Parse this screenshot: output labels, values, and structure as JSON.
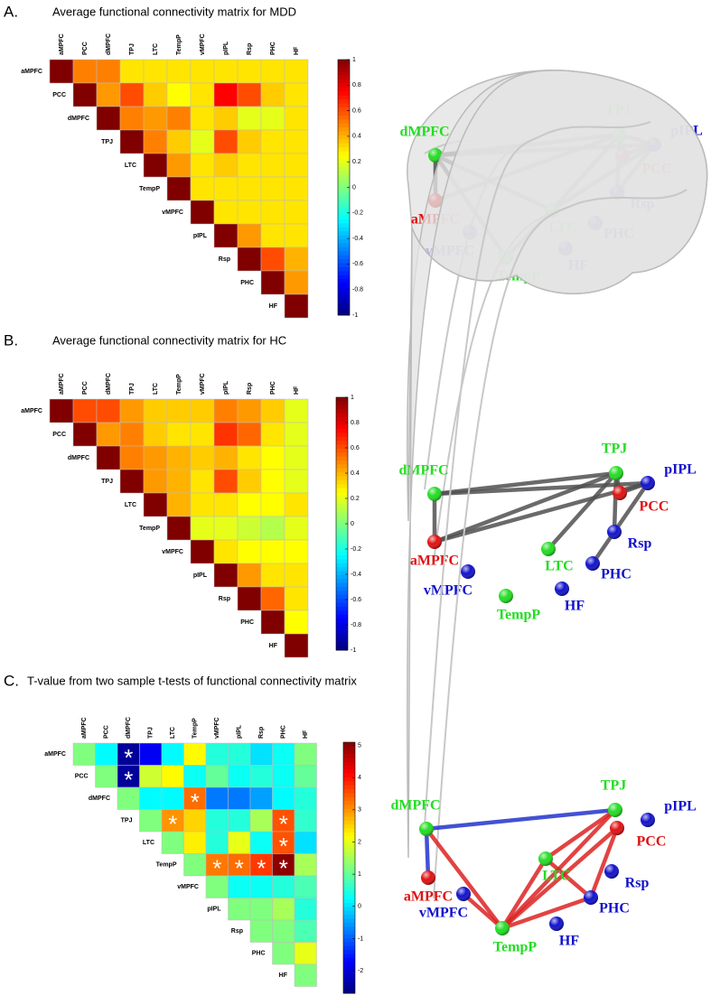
{
  "chart_data": [
    {
      "type": "heatmap",
      "label": "A.",
      "title": "Average functional connectivity matrix for MDD",
      "x": [
        "aMPFC",
        "PCC",
        "dMPFC",
        "TPJ",
        "LTC",
        "TempP",
        "vMPFC",
        "pIPL",
        "Rsp",
        "PHC",
        "HF"
      ],
      "y": [
        "aMPFC",
        "PCC",
        "dMPFC",
        "TPJ",
        "LTC",
        "TempP",
        "vMPFC",
        "pIPL",
        "Rsp",
        "PHC",
        "HF"
      ],
      "values": [
        [
          1,
          0.5,
          0.5,
          0.3,
          0.3,
          0.3,
          0.3,
          0.3,
          0.3,
          0.3,
          0.3
        ],
        [
          null,
          1,
          0.45,
          0.6,
          0.35,
          0.25,
          0.3,
          0.75,
          0.6,
          0.35,
          0.3
        ],
        [
          null,
          null,
          1,
          0.5,
          0.45,
          0.5,
          0.3,
          0.35,
          0.2,
          0.2,
          0.3
        ],
        [
          null,
          null,
          null,
          1,
          0.5,
          0.35,
          0.2,
          0.6,
          0.35,
          0.3,
          0.3
        ],
        [
          null,
          null,
          null,
          null,
          1,
          0.45,
          0.3,
          0.35,
          0.3,
          0.3,
          0.3
        ],
        [
          null,
          null,
          null,
          null,
          null,
          1,
          0.3,
          0.3,
          0.3,
          0.3,
          0.3
        ],
        [
          null,
          null,
          null,
          null,
          null,
          null,
          1,
          0.3,
          0.3,
          0.3,
          0.3
        ],
        [
          null,
          null,
          null,
          null,
          null,
          null,
          null,
          1,
          0.45,
          0.3,
          0.3
        ],
        [
          null,
          null,
          null,
          null,
          null,
          null,
          null,
          null,
          1,
          0.6,
          0.4
        ],
        [
          null,
          null,
          null,
          null,
          null,
          null,
          null,
          null,
          null,
          1,
          0.45
        ],
        [
          null,
          null,
          null,
          null,
          null,
          null,
          null,
          null,
          null,
          null,
          1
        ]
      ],
      "colormap": "jet",
      "zlim": [
        -1,
        1
      ],
      "zticks": [
        1,
        0.8,
        0.6,
        0.4,
        0.2,
        0,
        -0.2,
        -0.4,
        -0.6,
        -0.8,
        -1
      ],
      "node_colors": [
        "#e01010",
        "#e01010",
        "#22dd22",
        "#22dd22",
        "#22dd22",
        "#22dd22",
        "#1010cc",
        "#1010cc",
        "#1010cc",
        "#1010cc",
        "#1010cc"
      ]
    },
    {
      "type": "heatmap",
      "label": "B.",
      "title": "Average functional connectivity matrix for  HC",
      "x": [
        "aMPFC",
        "PCC",
        "dMPFC",
        "TPJ",
        "LTC",
        "TempP",
        "vMPFC",
        "pIPL",
        "Rsp",
        "PHC",
        "HF"
      ],
      "y": [
        "aMPFC",
        "PCC",
        "dMPFC",
        "TPJ",
        "LTC",
        "TempP",
        "vMPFC",
        "pIPL",
        "Rsp",
        "PHC",
        "HF"
      ],
      "values": [
        [
          1,
          0.6,
          0.6,
          0.45,
          0.35,
          0.35,
          0.35,
          0.5,
          0.45,
          0.35,
          0.2
        ],
        [
          null,
          1,
          0.45,
          0.5,
          0.35,
          0.3,
          0.3,
          0.65,
          0.55,
          0.3,
          0.2
        ],
        [
          null,
          null,
          1,
          0.5,
          0.45,
          0.4,
          0.35,
          0.4,
          0.3,
          0.25,
          0.2
        ],
        [
          null,
          null,
          null,
          1,
          0.45,
          0.4,
          0.3,
          0.6,
          0.35,
          0.25,
          0.2
        ],
        [
          null,
          null,
          null,
          null,
          1,
          0.4,
          0.3,
          0.3,
          0.25,
          0.25,
          0.3
        ],
        [
          null,
          null,
          null,
          null,
          null,
          1,
          0.2,
          0.2,
          0.15,
          0.1,
          0.2
        ],
        [
          null,
          null,
          null,
          null,
          null,
          null,
          1,
          0.3,
          0.25,
          0.25,
          0.25
        ],
        [
          null,
          null,
          null,
          null,
          null,
          null,
          null,
          1,
          0.45,
          0.3,
          0.3
        ],
        [
          null,
          null,
          null,
          null,
          null,
          null,
          null,
          null,
          1,
          0.55,
          0.3
        ],
        [
          null,
          null,
          null,
          null,
          null,
          null,
          null,
          null,
          null,
          1,
          0.25
        ],
        [
          null,
          null,
          null,
          null,
          null,
          null,
          null,
          null,
          null,
          null,
          1
        ]
      ],
      "colormap": "jet",
      "zlim": [
        -1,
        1
      ],
      "zticks": [
        1,
        0.8,
        0.6,
        0.4,
        0.2,
        0,
        -0.2,
        -0.4,
        -0.6,
        -0.8,
        -1
      ],
      "node_colors": [
        "#e01010",
        "#e01010",
        "#22dd22",
        "#22dd22",
        "#22dd22",
        "#22dd22",
        "#1010cc",
        "#1010cc",
        "#1010cc",
        "#1010cc",
        "#1010cc"
      ]
    },
    {
      "type": "heatmap",
      "label": "C.",
      "title": "T-value from two sample t-tests of functional connectivity matrix",
      "x": [
        "aMPFC",
        "PCC",
        "dMPFC",
        "TPJ",
        "LTC",
        "TempP",
        "vMPFC",
        "pIPL",
        "Rsp",
        "PHC",
        "HF"
      ],
      "y": [
        "aMPFC",
        "PCC",
        "dMPFC",
        "TPJ",
        "LTC",
        "TempP",
        "vMPFC",
        "pIPL",
        "Rsp",
        "PHC",
        "HF"
      ],
      "values": [
        [
          1.2,
          0.2,
          -2.5,
          -1.8,
          0.2,
          2.2,
          0.5,
          0.5,
          0,
          0.3,
          1.2
        ],
        [
          null,
          1.2,
          -2.5,
          1.8,
          2.2,
          0.3,
          1,
          0.3,
          0.5,
          0.3,
          1
        ],
        [
          null,
          null,
          1.2,
          0.2,
          0.2,
          3.3,
          -0.8,
          -0.8,
          -0.5,
          0.2,
          0.5
        ],
        [
          null,
          null,
          null,
          1.2,
          3,
          2.5,
          0.5,
          0.5,
          1.5,
          3.5,
          0.6
        ],
        [
          null,
          null,
          null,
          null,
          1.2,
          2.3,
          0.5,
          2,
          0.3,
          3.5,
          0
        ],
        [
          null,
          null,
          null,
          null,
          null,
          1.2,
          3.2,
          3.3,
          3.7,
          5,
          1.5
        ],
        [
          null,
          null,
          null,
          null,
          null,
          null,
          1.2,
          0.3,
          0.3,
          0.5,
          0.8
        ],
        [
          null,
          null,
          null,
          null,
          null,
          null,
          null,
          1.2,
          1.2,
          1.5,
          0.5
        ],
        [
          null,
          null,
          null,
          null,
          null,
          null,
          null,
          null,
          1.2,
          1.2,
          0.8
        ],
        [
          null,
          null,
          null,
          null,
          null,
          null,
          null,
          null,
          null,
          1.2,
          2
        ],
        [
          null,
          null,
          null,
          null,
          null,
          null,
          null,
          null,
          null,
          null,
          1.2
        ]
      ],
      "marker": "*",
      "significant_cells": [
        [
          0,
          2
        ],
        [
          1,
          2
        ],
        [
          2,
          5
        ],
        [
          3,
          4
        ],
        [
          3,
          9
        ],
        [
          4,
          9
        ],
        [
          5,
          6
        ],
        [
          5,
          7
        ],
        [
          5,
          8
        ],
        [
          5,
          9
        ]
      ],
      "colormap": "jet",
      "zlim": [
        -2.7,
        5.1
      ],
      "zticks": [
        5,
        4,
        3,
        2,
        1,
        0,
        -1,
        -2
      ],
      "node_colors": [
        "#e01010",
        "#e01010",
        "#22dd22",
        "#22dd22",
        "#22dd22",
        "#22dd22",
        "#1010cc",
        "#1010cc",
        "#1010cc",
        "#1010cc",
        "#1010cc"
      ]
    }
  ]
}
